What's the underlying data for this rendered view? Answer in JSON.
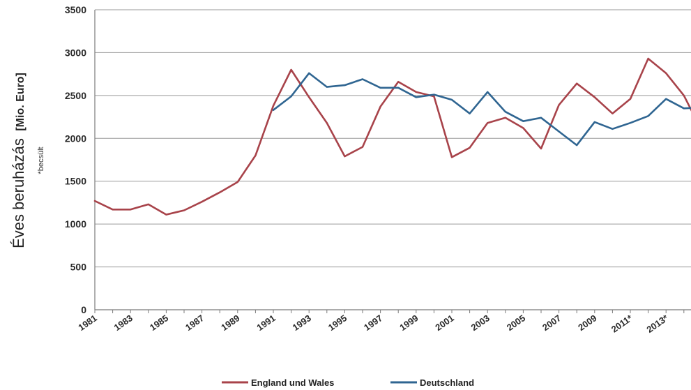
{
  "chart_data": {
    "type": "line",
    "ylabel": "Éves beruházás",
    "ylabel_unit": "[Mio. Euro]",
    "ylabel_note": "*becsült",
    "ylim": [
      0,
      3500
    ],
    "yticks": [
      "0",
      "500",
      "1000",
      "1500",
      "2000",
      "2500",
      "3000",
      "3500"
    ],
    "x": [
      "1981",
      "1982",
      "1983",
      "1984",
      "1985",
      "1986",
      "1987",
      "1988",
      "1989",
      "1990",
      "1991",
      "1992",
      "1993",
      "1994",
      "1995",
      "1996",
      "1997",
      "1998",
      "1999",
      "2000",
      "2001",
      "2002",
      "2003",
      "2004",
      "2005",
      "2006",
      "2007",
      "2008",
      "2009",
      "2010",
      "2011*",
      "2012",
      "2013*",
      "2014",
      "2015"
    ],
    "xticks": [
      "1981",
      "1983",
      "1985",
      "1987",
      "1989",
      "1991",
      "1993",
      "1995",
      "1997",
      "1999",
      "2001",
      "2003",
      "2005",
      "2007",
      "2009",
      "2011*",
      "2013*"
    ],
    "grid": true,
    "legend_position": "bottom",
    "series": [
      {
        "name": "England und Wales",
        "color": "#a8434a",
        "values": [
          1270,
          1170,
          1170,
          1230,
          1110,
          1160,
          1260,
          1370,
          1490,
          1800,
          2380,
          2800,
          2480,
          2180,
          1790,
          1900,
          2370,
          2660,
          2540,
          2490,
          1780,
          1890,
          2180,
          2240,
          2120,
          1880,
          2390,
          2640,
          2480,
          2290,
          2460,
          2930,
          2760,
          2500,
          2090
        ]
      },
      {
        "name": "Deutschland",
        "color": "#2f6591",
        "values": [
          null,
          null,
          null,
          null,
          null,
          null,
          null,
          null,
          null,
          null,
          2330,
          2490,
          2760,
          2600,
          2620,
          2690,
          2590,
          2590,
          2480,
          2510,
          2450,
          2290,
          2540,
          2310,
          2200,
          2240,
          2080,
          1920,
          2190,
          2110,
          2180,
          2260,
          2460,
          2350,
          2360
        ]
      }
    ]
  }
}
